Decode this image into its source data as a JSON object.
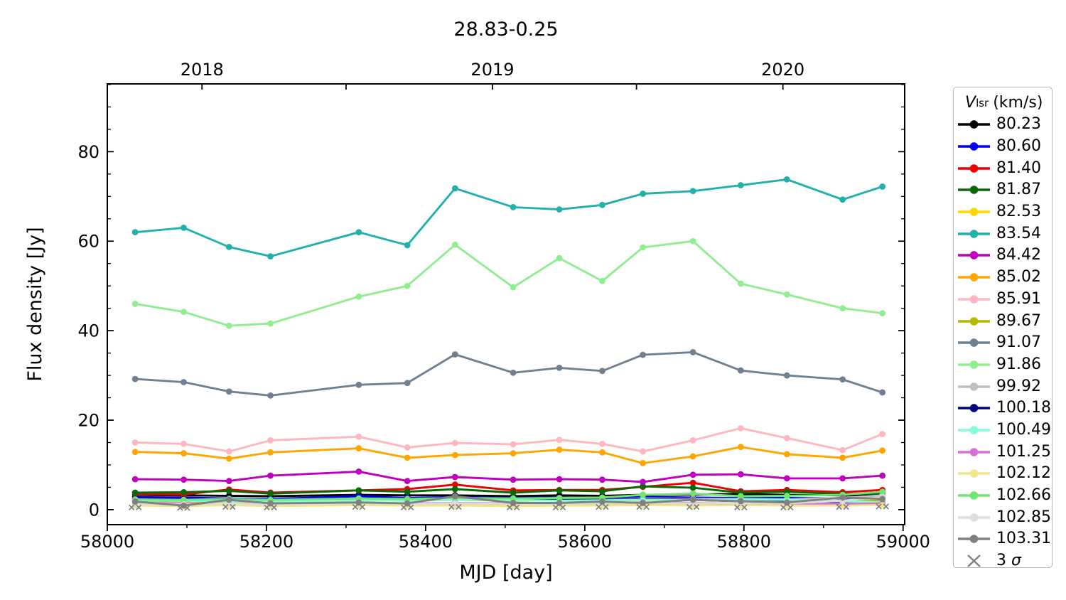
{
  "title": "28.83-0.25",
  "legend": {
    "title_v": "V",
    "title_sub": "lsr",
    "title_units": "(km/s)",
    "sigma_pre": "3 ",
    "sigma_symbol": "σ",
    "border_color": "#b5b5b5"
  },
  "chart_data": {
    "type": "line",
    "title": "28.83-0.25",
    "xlabel": "MJD [day]",
    "ylabel": "Flux density [Jy]",
    "xlim": [
      58000,
      59002
    ],
    "ylim": [
      -3.35,
      95.15
    ],
    "x_major_ticks": [
      58000,
      58200,
      58400,
      58600,
      58800,
      59000
    ],
    "x_minor_ticks": [
      58100,
      58300,
      58500,
      58700,
      58900
    ],
    "y_major_ticks": [
      0,
      20,
      40,
      60,
      80
    ],
    "y_minor_step": 5,
    "top_ticks": [
      {
        "mjd": 58119,
        "label": "2018"
      },
      {
        "mjd": 58300,
        "label": ""
      },
      {
        "mjd": 58484,
        "label": "2019"
      },
      {
        "mjd": 58665,
        "label": ""
      },
      {
        "mjd": 58849,
        "label": "2020"
      }
    ],
    "legend_position": "right",
    "grid": false,
    "x_mjd": [
      58035,
      58096,
      58153,
      58205,
      58316,
      58377,
      58437,
      58510,
      58568,
      58622,
      58673,
      58736,
      58796,
      58854,
      58924,
      58974
    ],
    "series": [
      {
        "label": "80.23",
        "color": "#000000",
        "values": [
          3.3,
          3.2,
          3.1,
          3.0,
          3.3,
          3.2,
          3.2,
          3.0,
          3.2,
          3.1,
          3.3,
          3.4,
          3.5,
          3.3,
          3.2,
          3.2
        ]
      },
      {
        "label": "80.60",
        "color": "#0000ee",
        "values": [
          2.8,
          2.7,
          2.5,
          2.4,
          3.0,
          2.6,
          2.8,
          2.6,
          2.7,
          2.6,
          2.9,
          2.7,
          2.6,
          2.6,
          2.5,
          2.6
        ]
      },
      {
        "label": "81.40",
        "color": "#ee0000",
        "values": [
          3.5,
          3.4,
          4.5,
          3.8,
          4.3,
          4.6,
          5.6,
          4.3,
          4.4,
          4.4,
          5.1,
          6.0,
          4.1,
          4.4,
          3.9,
          4.4
        ]
      },
      {
        "label": "81.87",
        "color": "#096909",
        "values": [
          3.8,
          3.9,
          4.2,
          3.6,
          4.3,
          4.0,
          4.6,
          3.8,
          4.3,
          4.1,
          5.2,
          4.9,
          3.8,
          4.0,
          3.5,
          3.6
        ]
      },
      {
        "label": "82.53",
        "color": "#ffd700",
        "values": [
          1.2,
          1.1,
          1.2,
          1.0,
          1.2,
          1.1,
          1.2,
          1.1,
          1.2,
          1.1,
          1.3,
          1.2,
          1.2,
          1.1,
          1.1,
          1.2
        ]
      },
      {
        "label": "83.54",
        "color": "#20b2aa",
        "values": [
          62.0,
          63.0,
          58.7,
          56.6,
          62.0,
          59.1,
          71.8,
          67.6,
          67.1,
          68.1,
          70.6,
          71.2,
          72.5,
          73.8,
          69.3,
          72.2
        ]
      },
      {
        "label": "84.42",
        "color": "#bf00bf",
        "values": [
          6.8,
          6.7,
          6.4,
          7.6,
          8.5,
          6.4,
          7.3,
          6.7,
          6.8,
          6.7,
          6.2,
          7.8,
          7.9,
          7.0,
          7.0,
          7.6
        ]
      },
      {
        "label": "85.02",
        "color": "#ffa500",
        "values": [
          12.9,
          12.6,
          11.4,
          12.8,
          13.7,
          11.6,
          12.2,
          12.6,
          13.4,
          12.8,
          10.4,
          11.9,
          14.0,
          12.4,
          11.6,
          13.2
        ]
      },
      {
        "label": "85.91",
        "color": "#ffb6c1",
        "values": [
          15.0,
          14.7,
          13.0,
          15.5,
          16.3,
          13.9,
          14.9,
          14.6,
          15.6,
          14.7,
          13.0,
          15.5,
          18.2,
          16.0,
          13.3,
          16.9
        ]
      },
      {
        "label": "89.67",
        "color": "#b8b800",
        "values": [
          2.0,
          1.9,
          1.8,
          1.9,
          2.1,
          2.0,
          2.2,
          2.0,
          2.1,
          2.0,
          2.2,
          2.1,
          2.0,
          1.9,
          1.9,
          2.0
        ]
      },
      {
        "label": "91.07",
        "color": "#708090",
        "values": [
          29.2,
          28.5,
          26.4,
          25.5,
          27.9,
          28.3,
          34.7,
          30.6,
          31.7,
          31.0,
          34.6,
          35.2,
          31.1,
          30.0,
          29.1,
          26.2
        ]
      },
      {
        "label": "91.86",
        "color": "#90ee90",
        "values": [
          46.0,
          44.2,
          41.1,
          41.6,
          47.6,
          50.0,
          59.2,
          49.7,
          56.2,
          51.1,
          58.6,
          60.0,
          50.5,
          48.1,
          45.0,
          43.9
        ]
      },
      {
        "label": "99.92",
        "color": "#c0c0c0",
        "values": [
          2.2,
          2.1,
          2.3,
          2.0,
          2.4,
          2.2,
          2.3,
          2.2,
          2.3,
          2.2,
          2.5,
          2.4,
          2.4,
          2.3,
          2.6,
          3.2
        ]
      },
      {
        "label": "100.18",
        "color": "#000080",
        "values": [
          2.4,
          2.3,
          2.2,
          2.2,
          2.3,
          2.3,
          2.4,
          2.3,
          2.2,
          2.2,
          2.3,
          2.2,
          1.9,
          1.7,
          1.4,
          1.3
        ]
      },
      {
        "label": "100.49",
        "color": "#7fffd4",
        "values": [
          2.1,
          2.0,
          1.9,
          1.9,
          2.1,
          2.0,
          2.2,
          2.1,
          2.0,
          2.1,
          2.2,
          2.1,
          2.3,
          2.2,
          1.9,
          1.6
        ]
      },
      {
        "label": "101.25",
        "color": "#da70d6",
        "values": [
          1.5,
          1.4,
          1.3,
          1.4,
          1.5,
          1.4,
          1.5,
          1.4,
          1.4,
          1.5,
          1.6,
          1.5,
          1.4,
          1.4,
          1.3,
          1.4
        ]
      },
      {
        "label": "102.12",
        "color": "#f0e68c",
        "values": [
          0.9,
          0.8,
          1.0,
          0.8,
          1.0,
          0.9,
          0.9,
          0.8,
          0.9,
          0.9,
          1.0,
          0.9,
          1.0,
          0.9,
          0.9,
          1.0
        ]
      },
      {
        "label": "102.66",
        "color": "#70e570",
        "values": [
          2.3,
          2.2,
          2.4,
          2.2,
          2.5,
          2.4,
          2.6,
          2.5,
          2.6,
          2.7,
          3.3,
          3.6,
          3.0,
          3.1,
          3.3,
          4.0
        ]
      },
      {
        "label": "102.85",
        "color": "#dcdcdc",
        "values": [
          1.3,
          1.2,
          1.4,
          1.2,
          1.4,
          1.3,
          1.4,
          1.3,
          1.3,
          1.4,
          1.5,
          1.4,
          1.5,
          1.4,
          2.0,
          2.8
        ]
      },
      {
        "label": "103.31",
        "color": "#808080",
        "values": [
          1.8,
          0.9,
          2.2,
          1.4,
          1.6,
          1.4,
          3.0,
          1.5,
          1.5,
          1.8,
          1.5,
          2.2,
          1.9,
          1.6,
          2.7,
          2.4
        ]
      }
    ],
    "sigma": {
      "label": "3 σ",
      "color": "#808080",
      "values": [
        0.5,
        0.4,
        0.6,
        0.5,
        0.6,
        0.5,
        0.6,
        0.5,
        0.5,
        0.6,
        0.6,
        0.6,
        0.5,
        0.5,
        0.6,
        0.7
      ],
      "pair_offset_days": 4.5
    }
  }
}
